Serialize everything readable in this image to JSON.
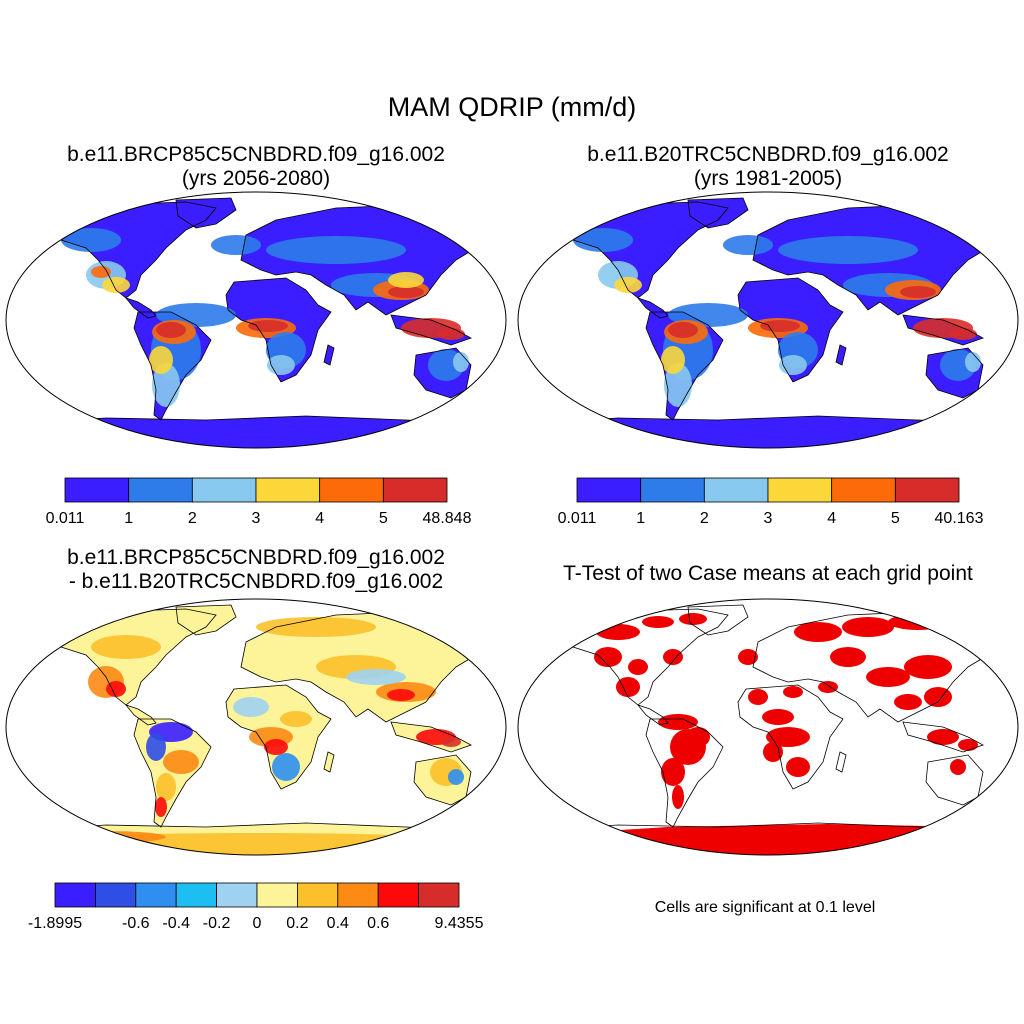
{
  "figure": {
    "title": "MAM QDRIP (mm/d)"
  },
  "panels": [
    {
      "id": "case",
      "title_line1": "b.e11.BRCP85C5CNBDRD.f09_g16.002",
      "title_line2": "(yrs 2056-2080)",
      "colorbar": {
        "colors": [
          "#3a1eff",
          "#2e7bea",
          "#88c9ef",
          "#fcd73a",
          "#fc6a0a",
          "#d72d2a"
        ],
        "tick_labels": [
          "0.011",
          "1",
          "2",
          "3",
          "4",
          "5",
          "48.848"
        ]
      }
    },
    {
      "id": "control",
      "title_line1": "b.e11.B20TRC5CNBDRD.f09_g16.002",
      "title_line2": "(yrs 1981-2005)",
      "colorbar": {
        "colors": [
          "#3a1eff",
          "#2e7bea",
          "#88c9ef",
          "#fcd73a",
          "#fc6a0a",
          "#d72d2a"
        ],
        "tick_labels": [
          "0.011",
          "1",
          "2",
          "3",
          "4",
          "5",
          "40.163"
        ]
      }
    },
    {
      "id": "difference",
      "title_line1": "b.e11.BRCP85C5CNBDRD.f09_g16.002",
      "title_line2": "- b.e11.B20TRC5CNBDRD.f09_g16.002",
      "colorbar": {
        "colors": [
          "#3a1eff",
          "#2e4ee6",
          "#2e8ff0",
          "#1dbff2",
          "#9ed2f0",
          "#fdf49a",
          "#fcc02a",
          "#fc8a14",
          "#fc0a0a",
          "#d72d2a"
        ],
        "tick_labels": [
          "-1.8995",
          "",
          "-0.6",
          "-0.4",
          "-0.2",
          "0",
          "0.2",
          "0.4",
          "0.6",
          "",
          "9.4355"
        ]
      }
    },
    {
      "id": "ttest",
      "title_line1": "T-Test of two Case means at each grid point",
      "title_line2": "",
      "note": "Cells are significant at 0.1 level",
      "color": "#ee0000"
    }
  ]
}
